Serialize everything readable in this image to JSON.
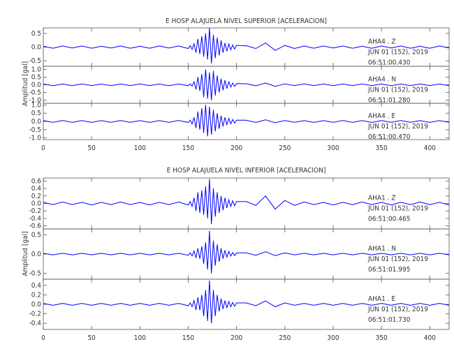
{
  "chart_data": [
    {
      "type": "line",
      "title": "E HOSP ALAJUELA NIVEL SUPERIOR [ACELERACION]",
      "y_label": "Amplitud [gal]",
      "xlim": [
        0,
        420
      ],
      "xticks": [
        0,
        50,
        100,
        150,
        200,
        250,
        300,
        350,
        400
      ],
      "x": [
        0,
        10,
        20,
        30,
        40,
        50,
        60,
        70,
        80,
        90,
        100,
        110,
        120,
        130,
        140,
        150,
        152,
        154,
        156,
        158,
        160,
        162,
        164,
        166,
        168,
        170,
        172,
        174,
        176,
        178,
        180,
        182,
        184,
        186,
        188,
        190,
        192,
        194,
        196,
        198,
        200,
        210,
        220,
        230,
        240,
        250,
        260,
        270,
        280,
        290,
        300,
        310,
        320,
        330,
        340,
        350,
        360,
        370,
        380,
        390,
        400,
        410,
        420
      ],
      "series": [
        {
          "name": "AHA4 . Z",
          "date": "JUN 01 (152), 2019",
          "time": "06:51:00.430",
          "color": "#0000ff",
          "ylim": [
            -0.7,
            0.7
          ],
          "yticks": [
            {
              "value": -0.5,
              "label": "-0.5"
            },
            {
              "value": 0,
              "label": "0.0"
            },
            {
              "value": 0.5,
              "label": "0.5"
            }
          ],
          "values": [
            0.03,
            -0.04,
            0.04,
            -0.03,
            0.04,
            -0.04,
            0.03,
            -0.03,
            0.04,
            -0.04,
            0.03,
            -0.04,
            0.04,
            -0.03,
            0.04,
            -0.05,
            0.05,
            -0.08,
            0.12,
            -0.2,
            0.3,
            -0.25,
            0.4,
            -0.35,
            0.5,
            -0.45,
            0.7,
            -0.6,
            0.45,
            -0.4,
            0.35,
            -0.3,
            0.25,
            -0.2,
            0.15,
            -0.15,
            0.12,
            -0.1,
            0.08,
            -0.07,
            0.06,
            0.05,
            -0.05,
            0.15,
            -0.12,
            0.06,
            -0.05,
            0.04,
            -0.04,
            0.04,
            -0.03,
            0.04,
            -0.04,
            0.03,
            -0.04,
            0.04,
            -0.03,
            0.04,
            -0.04,
            0.03,
            -0.04,
            0.04,
            -0.03
          ]
        },
        {
          "name": "AHA4 . N",
          "date": "JUN 01 (152), 2019",
          "time": "06:51:01.280",
          "color": "#0000ff",
          "ylim": [
            -1.2,
            1.2
          ],
          "yticks": [
            {
              "value": -1,
              "label": "-1.0"
            },
            {
              "value": -0.5,
              "label": "-0.5"
            },
            {
              "value": 0,
              "label": "0.0"
            },
            {
              "value": 0.5,
              "label": "0.5"
            },
            {
              "value": 1,
              "label": "1.0"
            }
          ],
          "values": [
            0.05,
            -0.06,
            0.05,
            -0.05,
            0.06,
            -0.05,
            0.05,
            -0.06,
            0.05,
            -0.05,
            0.06,
            -0.05,
            0.05,
            -0.06,
            0.05,
            -0.06,
            0.06,
            -0.1,
            0.2,
            -0.3,
            0.5,
            -0.4,
            0.7,
            -0.8,
            1.0,
            -0.9,
            0.8,
            -1.0,
            0.9,
            -0.7,
            0.6,
            -0.5,
            0.4,
            -0.35,
            0.3,
            -0.25,
            0.2,
            -0.15,
            0.12,
            -0.1,
            0.08,
            0.07,
            -0.06,
            0.12,
            -0.1,
            0.06,
            -0.05,
            0.06,
            -0.05,
            0.05,
            -0.06,
            0.05,
            -0.05,
            0.06,
            -0.05,
            0.05,
            -0.06,
            0.05,
            -0.05,
            0.06,
            -0.05,
            0.05,
            -0.06
          ]
        },
        {
          "name": "AHA4 . E",
          "date": "JUN 01 (152), 2019",
          "time": "06:51:00.470",
          "color": "#0000ff",
          "ylim": [
            -1.1,
            1.1
          ],
          "yticks": [
            {
              "value": -1,
              "label": "-1.0"
            },
            {
              "value": -0.5,
              "label": "-0.5"
            },
            {
              "value": 0,
              "label": "0.0"
            },
            {
              "value": 0.5,
              "label": "0.5"
            },
            {
              "value": 1,
              "label": "1.0"
            }
          ],
          "values": [
            0.05,
            -0.05,
            0.06,
            -0.05,
            0.05,
            -0.06,
            0.05,
            -0.05,
            0.06,
            -0.05,
            0.05,
            -0.06,
            0.05,
            -0.05,
            0.06,
            -0.06,
            0.08,
            -0.15,
            0.25,
            -0.4,
            0.6,
            -0.5,
            0.8,
            -0.7,
            1.0,
            -0.9,
            0.9,
            -0.8,
            0.7,
            -0.6,
            0.5,
            -0.45,
            0.35,
            -0.3,
            0.25,
            -0.2,
            0.18,
            -0.15,
            0.12,
            -0.1,
            0.08,
            0.07,
            -0.06,
            0.1,
            -0.08,
            0.06,
            -0.05,
            0.05,
            -0.06,
            0.05,
            -0.05,
            0.06,
            -0.05,
            0.05,
            -0.06,
            0.05,
            -0.05,
            0.06,
            -0.05,
            0.05,
            -0.06,
            0.05,
            -0.05
          ]
        }
      ]
    },
    {
      "type": "line",
      "title": "E HOSP ALAJUELA NIVEL INFERIOR [ACELERACION]",
      "y_label": "Amplitud [gal]",
      "xlim": [
        0,
        420
      ],
      "xticks": [
        0,
        50,
        100,
        150,
        200,
        250,
        300,
        350,
        400
      ],
      "x": [
        0,
        10,
        20,
        30,
        40,
        50,
        60,
        70,
        80,
        90,
        100,
        110,
        120,
        130,
        140,
        150,
        152,
        154,
        156,
        158,
        160,
        162,
        164,
        166,
        168,
        170,
        172,
        174,
        176,
        178,
        180,
        182,
        184,
        186,
        188,
        190,
        192,
        194,
        196,
        198,
        200,
        210,
        220,
        230,
        240,
        250,
        260,
        270,
        280,
        290,
        300,
        310,
        320,
        330,
        340,
        350,
        360,
        370,
        380,
        390,
        400,
        410,
        420
      ],
      "series": [
        {
          "name": "AHA1 . Z",
          "date": "JUN 01 (152), 2019",
          "time": "06:51:00.465",
          "color": "#0000ff",
          "ylim": [
            -0.68,
            0.68
          ],
          "yticks": [
            {
              "value": -0.6,
              "label": "-0.6"
            },
            {
              "value": -0.4,
              "label": "-0.4"
            },
            {
              "value": -0.2,
              "label": "-0.2"
            },
            {
              "value": 0,
              "label": "0.0"
            },
            {
              "value": 0.2,
              "label": "0.2"
            },
            {
              "value": 0.4,
              "label": "0.4"
            },
            {
              "value": 0.6,
              "label": "0.6"
            }
          ],
          "values": [
            0.03,
            -0.03,
            0.04,
            -0.03,
            0.03,
            -0.04,
            0.03,
            -0.03,
            0.04,
            -0.03,
            0.03,
            -0.04,
            0.03,
            -0.03,
            0.04,
            -0.04,
            0.05,
            -0.08,
            0.15,
            -0.2,
            0.3,
            -0.25,
            0.35,
            -0.3,
            0.45,
            -0.4,
            0.65,
            -0.55,
            0.4,
            -0.35,
            0.3,
            -0.25,
            0.2,
            -0.18,
            0.15,
            -0.12,
            0.1,
            -0.08,
            0.07,
            -0.06,
            0.05,
            0.05,
            -0.05,
            0.2,
            -0.15,
            0.08,
            -0.05,
            0.04,
            -0.03,
            0.03,
            -0.04,
            0.03,
            -0.03,
            0.04,
            -0.03,
            0.03,
            -0.04,
            0.03,
            -0.03,
            0.04,
            -0.03,
            0.03,
            -0.04
          ]
        },
        {
          "name": "AHA1 . N",
          "date": "JUN 01 (152), 2019",
          "time": "06:51:01.995",
          "color": "#0000ff",
          "ylim": [
            -0.65,
            0.65
          ],
          "yticks": [
            {
              "value": -0.5,
              "label": "-0.5"
            },
            {
              "value": 0,
              "label": "0.0"
            },
            {
              "value": 0.5,
              "label": "0.5"
            }
          ],
          "values": [
            0.02,
            -0.02,
            0.02,
            -0.02,
            0.02,
            -0.02,
            0.02,
            -0.02,
            0.02,
            -0.02,
            0.02,
            -0.02,
            0.02,
            -0.02,
            0.02,
            -0.03,
            0.03,
            -0.05,
            0.08,
            -0.1,
            0.15,
            -0.12,
            0.2,
            -0.25,
            0.3,
            -0.4,
            0.6,
            -0.5,
            0.35,
            -0.3,
            0.25,
            -0.2,
            0.15,
            -0.12,
            0.1,
            -0.08,
            0.07,
            -0.05,
            0.04,
            -0.04,
            0.03,
            0.03,
            -0.03,
            0.06,
            -0.04,
            0.03,
            -0.02,
            0.02,
            -0.02,
            0.02,
            -0.02,
            0.02,
            -0.02,
            0.02,
            -0.02,
            0.02,
            -0.02,
            0.02,
            -0.02,
            0.02,
            -0.02,
            0.02,
            -0.02
          ]
        },
        {
          "name": "AHA1 . E",
          "date": "JUN 01 (152), 2019",
          "time": "06:51:01.730",
          "color": "#0000ff",
          "ylim": [
            -0.53,
            0.53
          ],
          "yticks": [
            {
              "value": -0.4,
              "label": "-0.4"
            },
            {
              "value": -0.2,
              "label": "-0.2"
            },
            {
              "value": 0,
              "label": "0.0"
            },
            {
              "value": 0.2,
              "label": "0.2"
            },
            {
              "value": 0.4,
              "label": "0.4"
            }
          ],
          "values": [
            0.02,
            -0.02,
            0.02,
            -0.02,
            0.02,
            -0.02,
            0.02,
            -0.02,
            0.02,
            -0.02,
            0.02,
            -0.02,
            0.02,
            -0.02,
            0.02,
            -0.03,
            0.03,
            -0.05,
            0.08,
            -0.12,
            0.15,
            -0.12,
            0.2,
            -0.25,
            0.3,
            -0.35,
            0.5,
            -0.4,
            0.3,
            -0.25,
            0.2,
            -0.15,
            0.12,
            -0.1,
            0.08,
            -0.07,
            0.06,
            -0.05,
            0.04,
            -0.04,
            0.03,
            0.03,
            -0.03,
            0.07,
            -0.05,
            0.03,
            -0.02,
            0.02,
            -0.02,
            0.02,
            -0.02,
            0.02,
            -0.02,
            0.02,
            -0.02,
            0.02,
            -0.02,
            0.02,
            -0.02,
            0.02,
            -0.02,
            0.02,
            -0.02
          ]
        }
      ]
    }
  ]
}
